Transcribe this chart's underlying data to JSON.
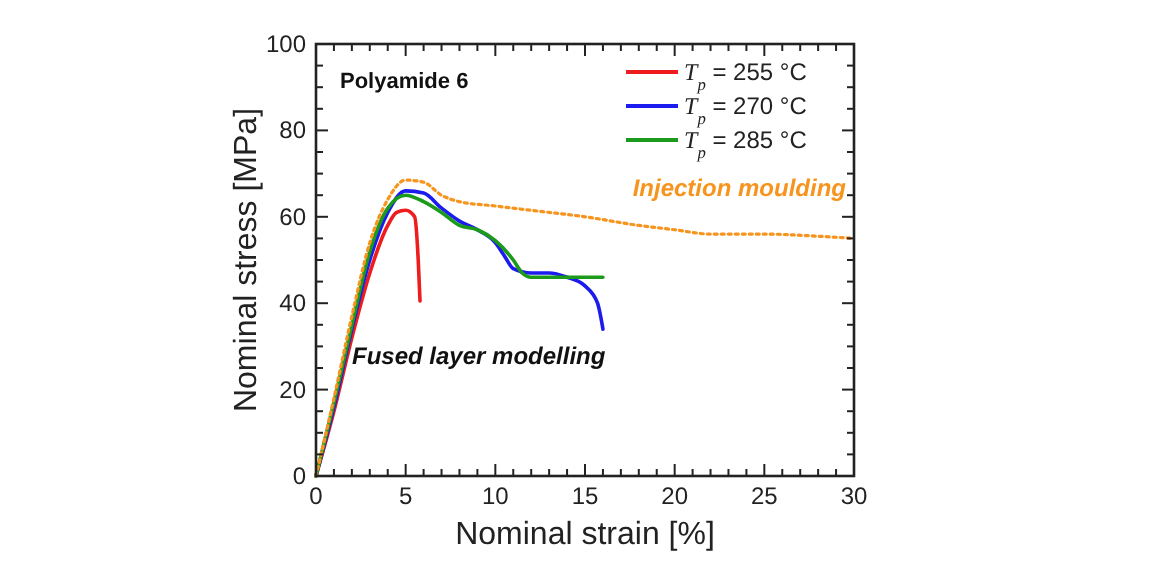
{
  "chart_data": {
    "type": "line",
    "xlabel": "Nominal strain [%]",
    "ylabel": "Nominal stress [MPa]",
    "xlim": [
      0,
      30
    ],
    "ylim": [
      0,
      100
    ],
    "xticks": [
      0,
      {
        "value": 1,
        "label": null
      },
      {
        "value": 2,
        "label": null
      },
      {
        "value": 3,
        "label": null
      },
      {
        "value": 4,
        "label": null
      },
      5,
      {
        "value": 6,
        "label": null
      },
      {
        "value": 7,
        "label": null
      },
      {
        "value": 8,
        "label": null
      },
      {
        "value": 9,
        "label": null
      },
      10,
      {
        "value": 11,
        "label": null
      },
      {
        "value": 12,
        "label": null
      },
      {
        "value": 13,
        "label": null
      },
      {
        "value": 14,
        "label": null
      },
      15,
      {
        "value": 16,
        "label": null
      },
      {
        "value": 17,
        "label": null
      },
      {
        "value": 18,
        "label": null
      },
      {
        "value": 19,
        "label": null
      },
      20,
      {
        "value": 21,
        "label": null
      },
      {
        "value": 22,
        "label": null
      },
      {
        "value": 23,
        "label": null
      },
      {
        "value": 24,
        "label": null
      },
      25,
      {
        "value": 26,
        "label": null
      },
      {
        "value": 27,
        "label": null
      },
      {
        "value": 28,
        "label": null
      },
      {
        "value": 29,
        "label": null
      },
      30
    ],
    "yticks": [
      0,
      {
        "value": 5,
        "label": null
      },
      {
        "value": 10,
        "label": null
      },
      {
        "value": 15,
        "label": null
      },
      20,
      {
        "value": 25,
        "label": null
      },
      {
        "value": 30,
        "label": null
      },
      {
        "value": 35,
        "label": null
      },
      40,
      {
        "value": 45,
        "label": null
      },
      {
        "value": 50,
        "label": null
      },
      {
        "value": 55,
        "label": null
      },
      60,
      {
        "value": 65,
        "label": null
      },
      {
        "value": 70,
        "label": null
      },
      {
        "value": 75,
        "label": null
      },
      80,
      {
        "value": 85,
        "label": null
      },
      {
        "value": 90,
        "label": null
      },
      {
        "value": 95,
        "label": null
      },
      100
    ],
    "grid": false,
    "legend": "top right",
    "annotations": [
      "Polyamide 6",
      "Injection moulding",
      "Fused layer modelling"
    ],
    "series": [
      {
        "name": "T$_{p}$ = 255 °C",
        "color": "#ee1c1c",
        "line_style": "solid",
        "x": [
          0,
          1,
          2,
          3,
          4,
          4.5,
          5,
          5.5,
          5.7,
          5.8
        ],
        "values": [
          0,
          15,
          32,
          47,
          58,
          61,
          61.5,
          60,
          50,
          40.5
        ]
      },
      {
        "name": "T$_{p}$ = 270 °C",
        "color": "#1c1cee",
        "line_style": "solid",
        "x": [
          0,
          1,
          2,
          3,
          4,
          5,
          6,
          7,
          8,
          9,
          10,
          10.5,
          11,
          12,
          13,
          14,
          15,
          15.7,
          16
        ],
        "values": [
          0,
          16,
          34,
          50,
          61,
          66,
          65.5,
          62,
          59,
          57,
          54,
          51,
          48,
          47,
          47,
          46,
          44,
          40,
          34
        ]
      },
      {
        "name": "T$_{p}$ = 285 °C",
        "color": "#1c9a1c",
        "line_style": "solid",
        "x": [
          0,
          1,
          2,
          3,
          4,
          5,
          6,
          7,
          8,
          9,
          10,
          11,
          11.5,
          12,
          13,
          14,
          16
        ],
        "values": [
          0,
          17,
          35,
          52,
          62,
          65,
          63.5,
          61,
          58,
          57,
          54.5,
          50,
          47,
          46,
          46,
          46,
          46
        ]
      },
      {
        "color": "#f7941d",
        "line_style": "dotted",
        "x": [
          0,
          1,
          2,
          3,
          4,
          5,
          6,
          7,
          8,
          10,
          12,
          15,
          18,
          20,
          22,
          25,
          28,
          30
        ],
        "values": [
          0,
          18,
          37,
          54,
          64,
          68.5,
          68,
          65,
          63.5,
          62.5,
          61.5,
          60,
          58,
          57,
          56,
          56,
          55.5,
          55
        ]
      }
    ]
  }
}
